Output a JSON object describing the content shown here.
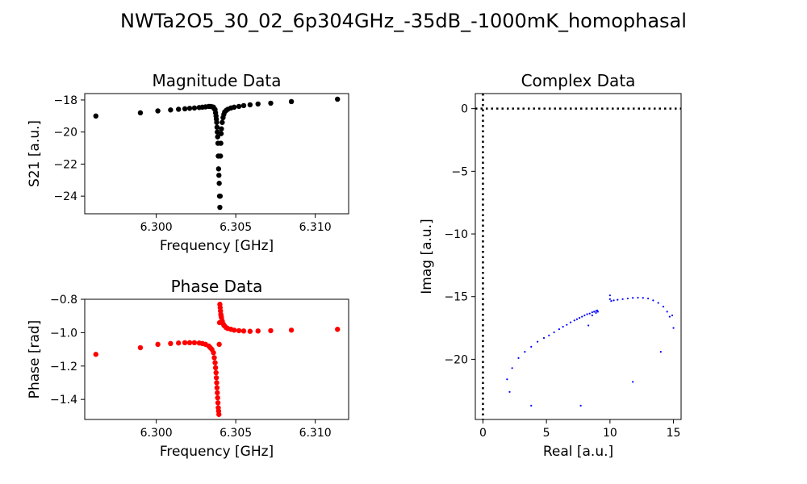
{
  "figure": {
    "suptitle": "NWTa2O5_30_02_6p304GHz_-35dB_-1000mK_homophasal"
  },
  "chart_data": [
    {
      "id": "magnitude",
      "type": "scatter",
      "title": "Magnitude Data",
      "xlabel": "Frequency [GHz]",
      "ylabel": "S21 [a.u.]",
      "xlim": [
        6.2955,
        6.3121
      ],
      "ylim": [
        -25.1,
        -17.6
      ],
      "xticks": [
        6.3,
        6.305,
        6.31
      ],
      "xtick_labels": [
        "6.300",
        "6.305",
        "6.310"
      ],
      "yticks": [
        -18,
        -20,
        -22,
        -24
      ],
      "ytick_labels": [
        "−18",
        "−20",
        "−22",
        "−24"
      ],
      "color": "#000000",
      "marker_radius": 3.2,
      "points": [
        [
          6.2962,
          -19.0
        ],
        [
          6.299,
          -18.8
        ],
        [
          6.3001,
          -18.68
        ],
        [
          6.3009,
          -18.62
        ],
        [
          6.3014,
          -18.58
        ],
        [
          6.3018,
          -18.55
        ],
        [
          6.3021,
          -18.52
        ],
        [
          6.3024,
          -18.5
        ],
        [
          6.3027,
          -18.47
        ],
        [
          6.3029,
          -18.45
        ],
        [
          6.3031,
          -18.43
        ],
        [
          6.3033,
          -18.4
        ],
        [
          6.3034,
          -18.4
        ],
        [
          6.3035,
          -18.42
        ],
        [
          6.3036,
          -18.45
        ],
        [
          6.30365,
          -18.55
        ],
        [
          6.3037,
          -18.6
        ],
        [
          6.30373,
          -18.8
        ],
        [
          6.30376,
          -19.0
        ],
        [
          6.30378,
          -19.2
        ],
        [
          6.3038,
          -19.4
        ],
        [
          6.30382,
          -19.7
        ],
        [
          6.30384,
          -20.0
        ],
        [
          6.30386,
          -20.3
        ],
        [
          6.30388,
          -20.7
        ],
        [
          6.3039,
          -21.5
        ],
        [
          6.30392,
          -22.3
        ],
        [
          6.30394,
          -22.7
        ],
        [
          6.30396,
          -23.2
        ],
        [
          6.30398,
          -24.0
        ],
        [
          6.304,
          -24.7
        ],
        [
          6.30402,
          -24.0
        ],
        [
          6.30404,
          -21.5
        ],
        [
          6.30406,
          -20.7
        ],
        [
          6.30408,
          -20.1
        ],
        [
          6.3041,
          -19.8
        ],
        [
          6.30415,
          -19.4
        ],
        [
          6.3042,
          -19.1
        ],
        [
          6.30425,
          -18.9
        ],
        [
          6.3043,
          -18.75
        ],
        [
          6.3044,
          -18.65
        ],
        [
          6.3045,
          -18.58
        ],
        [
          6.3047,
          -18.5
        ],
        [
          6.3049,
          -18.45
        ],
        [
          6.3052,
          -18.4
        ],
        [
          6.3055,
          -18.35
        ],
        [
          6.3059,
          -18.3
        ],
        [
          6.3064,
          -18.25
        ],
        [
          6.3072,
          -18.2
        ],
        [
          6.3085,
          -18.1
        ],
        [
          6.3114,
          -17.95
        ]
      ]
    },
    {
      "id": "phase",
      "type": "scatter",
      "title": "Phase Data",
      "xlabel": "Frequency [GHz]",
      "ylabel": "Phase [rad]",
      "xlim": [
        6.2955,
        6.3121
      ],
      "ylim": [
        -1.52,
        -0.8
      ],
      "xticks": [
        6.3,
        6.305,
        6.31
      ],
      "xtick_labels": [
        "6.300",
        "6.305",
        "6.310"
      ],
      "yticks": [
        -0.8,
        -1.0,
        -1.2,
        -1.4
      ],
      "ytick_labels": [
        "−0.8",
        "−1.0",
        "−1.2",
        "−1.4"
      ],
      "color": "#ff0000",
      "marker_radius": 3.2,
      "points": [
        [
          6.2962,
          -1.13
        ],
        [
          6.299,
          -1.09
        ],
        [
          6.3001,
          -1.07
        ],
        [
          6.3009,
          -1.065
        ],
        [
          6.3014,
          -1.062
        ],
        [
          6.3018,
          -1.06
        ],
        [
          6.3021,
          -1.06
        ],
        [
          6.3024,
          -1.06
        ],
        [
          6.3027,
          -1.062
        ],
        [
          6.3029,
          -1.065
        ],
        [
          6.3031,
          -1.07
        ],
        [
          6.3033,
          -1.08
        ],
        [
          6.3034,
          -1.09
        ],
        [
          6.3035,
          -1.1
        ],
        [
          6.3036,
          -1.12
        ],
        [
          6.30365,
          -1.15
        ],
        [
          6.3037,
          -1.18
        ],
        [
          6.30373,
          -1.21
        ],
        [
          6.30376,
          -1.24
        ],
        [
          6.30378,
          -1.27
        ],
        [
          6.3038,
          -1.3
        ],
        [
          6.30382,
          -1.33
        ],
        [
          6.30384,
          -1.36
        ],
        [
          6.30386,
          -1.39
        ],
        [
          6.30388,
          -1.42
        ],
        [
          6.3039,
          -1.45
        ],
        [
          6.30392,
          -1.47
        ],
        [
          6.30394,
          -1.49
        ],
        [
          6.30396,
          -1.07
        ],
        [
          6.30398,
          -0.94
        ],
        [
          6.304,
          -0.83
        ],
        [
          6.30402,
          -0.85
        ],
        [
          6.30404,
          -0.87
        ],
        [
          6.30406,
          -0.89
        ],
        [
          6.30408,
          -0.9
        ],
        [
          6.3041,
          -0.91
        ],
        [
          6.30415,
          -0.93
        ],
        [
          6.3042,
          -0.945
        ],
        [
          6.30425,
          -0.955
        ],
        [
          6.3043,
          -0.96
        ],
        [
          6.3044,
          -0.97
        ],
        [
          6.3045,
          -0.975
        ],
        [
          6.3047,
          -0.98
        ],
        [
          6.3049,
          -0.985
        ],
        [
          6.3052,
          -0.988
        ],
        [
          6.3055,
          -0.99
        ],
        [
          6.3059,
          -0.992
        ],
        [
          6.3064,
          -0.99
        ],
        [
          6.3072,
          -0.988
        ],
        [
          6.3085,
          -0.985
        ],
        [
          6.3114,
          -0.98
        ]
      ]
    },
    {
      "id": "complex",
      "type": "scatter",
      "title": "Complex Data",
      "xlabel": "Real [a.u.]",
      "ylabel": "Imag [a.u.]",
      "xlim": [
        -0.6,
        15.6
      ],
      "ylim": [
        -24.8,
        1.2
      ],
      "xticks": [
        0,
        5,
        10,
        15
      ],
      "xtick_labels": [
        "0",
        "5",
        "10",
        "15"
      ],
      "yticks": [
        0,
        -5,
        -10,
        -15,
        -20
      ],
      "ytick_labels": [
        "0",
        "−5",
        "−10",
        "−15",
        "−20"
      ],
      "color": "#0000ff",
      "marker_radius": 1.1,
      "reference_lines": {
        "x": 0,
        "y": 0,
        "style": "dotted"
      },
      "points": [
        [
          1.9,
          -21.6
        ],
        [
          2.1,
          -22.6
        ],
        [
          2.3,
          -20.7
        ],
        [
          2.8,
          -19.9
        ],
        [
          3.3,
          -19.4
        ],
        [
          3.8,
          -19.0
        ],
        [
          4.3,
          -18.6
        ],
        [
          4.8,
          -18.3
        ],
        [
          5.2,
          -18.1
        ],
        [
          5.6,
          -17.85
        ],
        [
          6.0,
          -17.6
        ],
        [
          6.3,
          -17.4
        ],
        [
          6.6,
          -17.25
        ],
        [
          6.9,
          -17.05
        ],
        [
          7.2,
          -16.9
        ],
        [
          7.4,
          -16.8
        ],
        [
          7.6,
          -16.7
        ],
        [
          7.8,
          -16.6
        ],
        [
          8.0,
          -16.5
        ],
        [
          8.2,
          -16.4
        ],
        [
          8.4,
          -16.35
        ],
        [
          8.6,
          -16.25
        ],
        [
          8.75,
          -16.2
        ],
        [
          8.9,
          -16.15
        ],
        [
          9.0,
          -16.1
        ],
        [
          9.05,
          -16.2
        ],
        [
          8.9,
          -16.3
        ],
        [
          8.6,
          -16.5
        ],
        [
          8.3,
          -17.3
        ],
        [
          7.7,
          -23.7
        ],
        [
          3.8,
          -23.7
        ],
        [
          10.0,
          -14.9
        ],
        [
          10.0,
          -15.2
        ],
        [
          10.1,
          -15.35
        ],
        [
          10.3,
          -15.3
        ],
        [
          10.6,
          -15.25
        ],
        [
          11.0,
          -15.2
        ],
        [
          11.4,
          -15.15
        ],
        [
          11.8,
          -15.1
        ],
        [
          12.2,
          -15.08
        ],
        [
          12.6,
          -15.1
        ],
        [
          13.0,
          -15.15
        ],
        [
          13.4,
          -15.3
        ],
        [
          13.8,
          -15.5
        ],
        [
          14.2,
          -15.8
        ],
        [
          14.5,
          -16.2
        ],
        [
          14.7,
          -16.6
        ],
        [
          14.9,
          -16.5
        ],
        [
          15.0,
          -17.5
        ],
        [
          14.0,
          -19.4
        ],
        [
          11.8,
          -21.8
        ]
      ]
    }
  ]
}
